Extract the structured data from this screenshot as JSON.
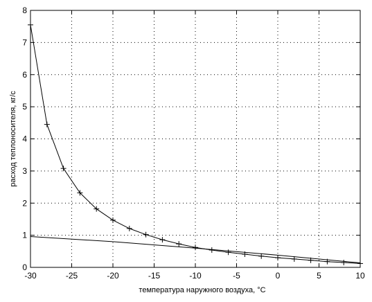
{
  "chart_data": {
    "type": "line",
    "title": "",
    "xlabel": "температура наружного воздуха,  °C",
    "ylabel": "расход теплоносителя, кг/с",
    "xlim": [
      -30,
      10
    ],
    "ylim": [
      0,
      8
    ],
    "xticks": [
      -30,
      -25,
      -20,
      -15,
      -10,
      -5,
      0,
      5,
      10
    ],
    "yticks": [
      0,
      1,
      2,
      3,
      4,
      5,
      6,
      7,
      8
    ],
    "grid": true,
    "legend": "none",
    "series": [
      {
        "marker": "+",
        "color": "#000000",
        "x": [
          -30,
          -28,
          -26,
          -24,
          -22,
          -20,
          -18,
          -16,
          -14,
          -12,
          -10,
          -8,
          -6,
          -4,
          -2,
          0,
          2,
          4,
          6,
          8,
          10
        ],
        "y": [
          7.55,
          4.45,
          3.08,
          2.32,
          1.82,
          1.47,
          1.21,
          1.02,
          0.86,
          0.73,
          0.62,
          0.54,
          0.47,
          0.41,
          0.35,
          0.3,
          0.26,
          0.22,
          0.18,
          0.15,
          0.12
        ]
      },
      {
        "marker": "none",
        "color": "#000000",
        "x": [
          -30,
          -20,
          -10,
          0,
          10
        ],
        "y": [
          0.96,
          0.8,
          0.6,
          0.38,
          0.14
        ]
      }
    ]
  }
}
